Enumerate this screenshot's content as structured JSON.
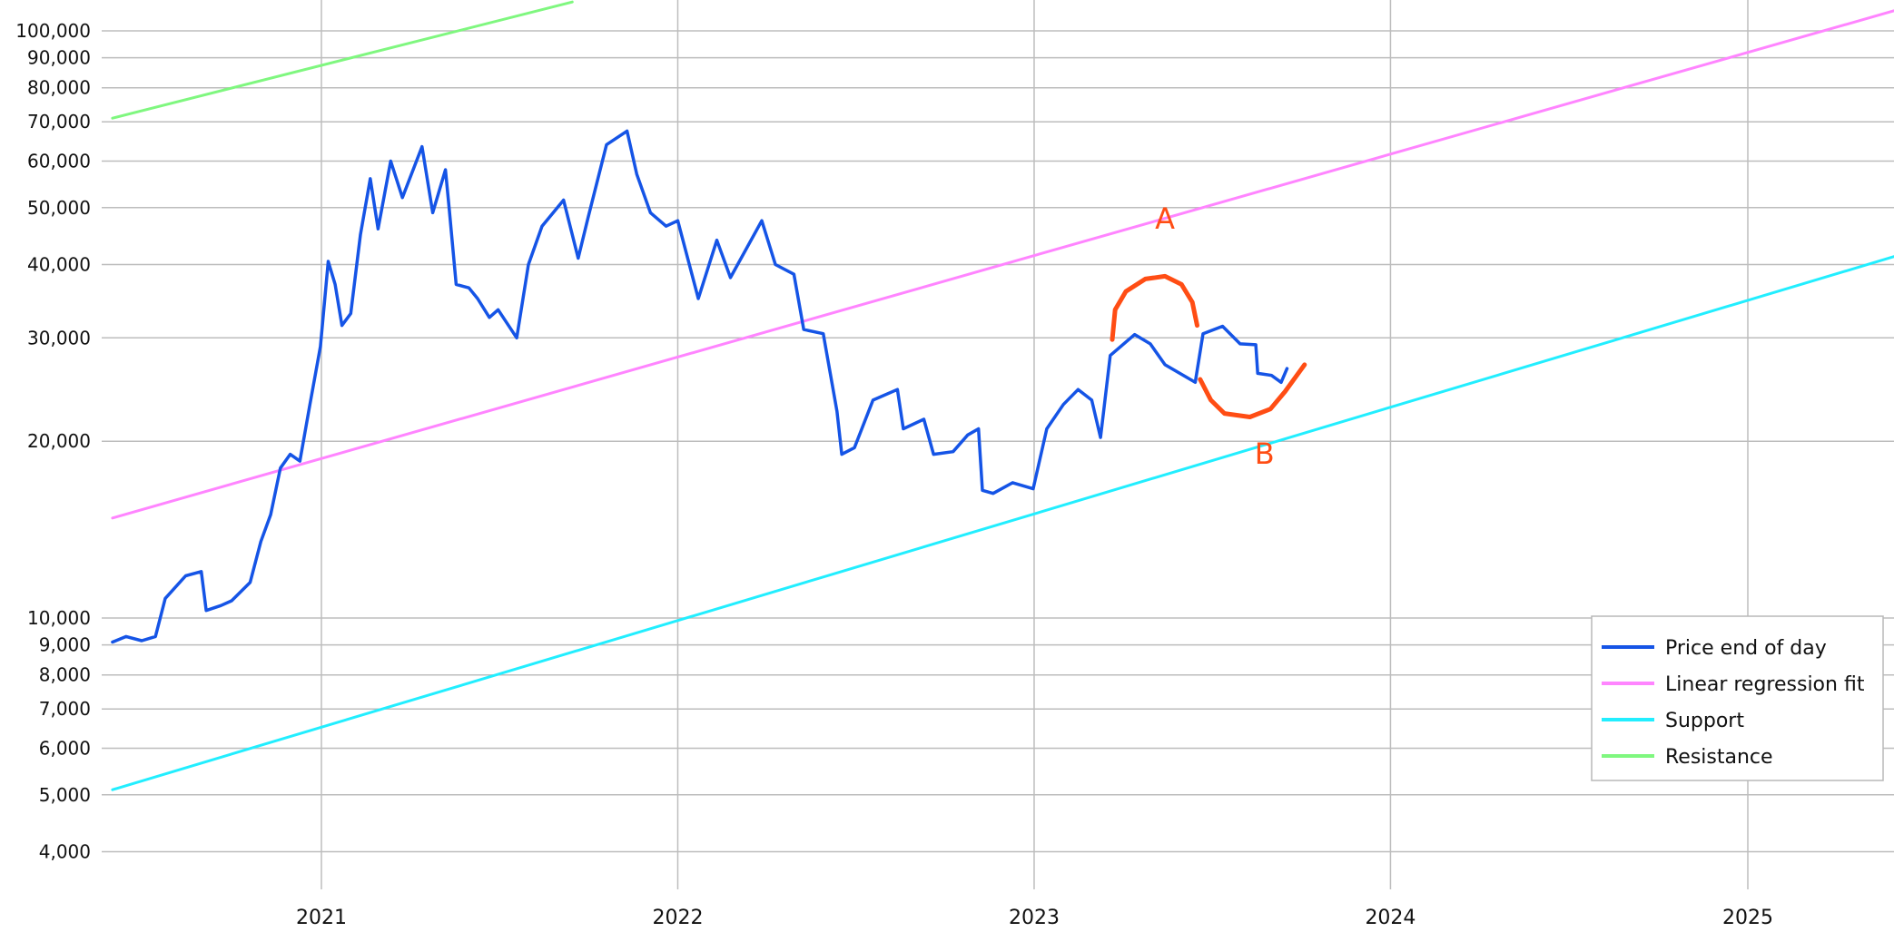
{
  "chart_data": {
    "type": "line",
    "title": "",
    "xlabel": "",
    "ylabel": "",
    "y_scale": "log",
    "xlim": [
      "2020-06-01",
      "2025-06-15"
    ],
    "ylim": [
      3500,
      100000
    ],
    "grid": true,
    "legend_position": "bottom-right",
    "x_ticks": [
      "2021",
      "2022",
      "2023",
      "2024",
      "2025"
    ],
    "y_ticks": [
      {
        "value": 4000,
        "label": "4,000"
      },
      {
        "value": 5000,
        "label": "5,000"
      },
      {
        "value": 6000,
        "label": "6,000"
      },
      {
        "value": 7000,
        "label": "7,000"
      },
      {
        "value": 8000,
        "label": "8,000"
      },
      {
        "value": 9000,
        "label": "9,000"
      },
      {
        "value": 10000,
        "label": "10,000"
      },
      {
        "value": 20000,
        "label": "20,000"
      },
      {
        "value": 30000,
        "label": "30,000"
      },
      {
        "value": 40000,
        "label": "40,000"
      },
      {
        "value": 50000,
        "label": "50,000"
      },
      {
        "value": 60000,
        "label": "60,000"
      },
      {
        "value": 70000,
        "label": "70,000"
      },
      {
        "value": 80000,
        "label": "80,000"
      },
      {
        "value": 90000,
        "label": "90,000"
      },
      {
        "value": 100000,
        "label": "100,000"
      }
    ],
    "series": [
      {
        "name": "Price end of day",
        "color": "#1554e6",
        "points": [
          [
            "2020-06-01",
            9100
          ],
          [
            "2020-06-15",
            9300
          ],
          [
            "2020-07-01",
            9150
          ],
          [
            "2020-07-15",
            9300
          ],
          [
            "2020-07-25",
            10800
          ],
          [
            "2020-08-15",
            11800
          ],
          [
            "2020-08-31",
            12000
          ],
          [
            "2020-09-05",
            10300
          ],
          [
            "2020-09-20",
            10500
          ],
          [
            "2020-10-01",
            10700
          ],
          [
            "2020-10-20",
            11500
          ],
          [
            "2020-10-31",
            13500
          ],
          [
            "2020-11-10",
            15000
          ],
          [
            "2020-11-20",
            18000
          ],
          [
            "2020-11-30",
            19000
          ],
          [
            "2020-12-10",
            18500
          ],
          [
            "2020-12-20",
            23000
          ],
          [
            "2020-12-31",
            29000
          ],
          [
            "2021-01-08",
            40500
          ],
          [
            "2021-01-15",
            37000
          ],
          [
            "2021-01-22",
            31500
          ],
          [
            "2021-01-31",
            33000
          ],
          [
            "2021-02-10",
            45000
          ],
          [
            "2021-02-20",
            56000
          ],
          [
            "2021-02-28",
            46000
          ],
          [
            "2021-03-13",
            60000
          ],
          [
            "2021-03-25",
            52000
          ],
          [
            "2021-04-14",
            63500
          ],
          [
            "2021-04-25",
            49000
          ],
          [
            "2021-05-08",
            58000
          ],
          [
            "2021-05-12",
            49500
          ],
          [
            "2021-05-19",
            37000
          ],
          [
            "2021-06-01",
            36500
          ],
          [
            "2021-06-10",
            35000
          ],
          [
            "2021-06-22",
            32500
          ],
          [
            "2021-07-01",
            33500
          ],
          [
            "2021-07-20",
            30000
          ],
          [
            "2021-08-01",
            40000
          ],
          [
            "2021-08-15",
            46500
          ],
          [
            "2021-09-06",
            51500
          ],
          [
            "2021-09-21",
            41000
          ],
          [
            "2021-10-01",
            48000
          ],
          [
            "2021-10-20",
            64000
          ],
          [
            "2021-11-10",
            67500
          ],
          [
            "2021-11-20",
            57000
          ],
          [
            "2021-12-04",
            49000
          ],
          [
            "2021-12-20",
            46500
          ],
          [
            "2022-01-01",
            47500
          ],
          [
            "2022-01-22",
            35000
          ],
          [
            "2022-02-10",
            44000
          ],
          [
            "2022-02-24",
            38000
          ],
          [
            "2022-03-28",
            47500
          ],
          [
            "2022-04-11",
            40000
          ],
          [
            "2022-04-30",
            38500
          ],
          [
            "2022-05-10",
            31000
          ],
          [
            "2022-05-30",
            30500
          ],
          [
            "2022-06-13",
            22500
          ],
          [
            "2022-06-18",
            19000
          ],
          [
            "2022-07-01",
            19500
          ],
          [
            "2022-07-20",
            23500
          ],
          [
            "2022-08-14",
            24500
          ],
          [
            "2022-08-20",
            21000
          ],
          [
            "2022-09-10",
            21800
          ],
          [
            "2022-09-20",
            19000
          ],
          [
            "2022-10-10",
            19200
          ],
          [
            "2022-10-25",
            20500
          ],
          [
            "2022-11-05",
            21000
          ],
          [
            "2022-11-09",
            16500
          ],
          [
            "2022-11-20",
            16300
          ],
          [
            "2022-12-10",
            17000
          ],
          [
            "2022-12-31",
            16600
          ],
          [
            "2023-01-14",
            21000
          ],
          [
            "2023-01-31",
            23100
          ],
          [
            "2023-02-15",
            24500
          ],
          [
            "2023-03-01",
            23500
          ],
          [
            "2023-03-10",
            20300
          ],
          [
            "2023-03-20",
            28000
          ],
          [
            "2023-04-14",
            30400
          ],
          [
            "2023-04-30",
            29300
          ],
          [
            "2023-05-15",
            27000
          ],
          [
            "2023-06-15",
            25200
          ],
          [
            "2023-06-23",
            30500
          ],
          [
            "2023-07-13",
            31400
          ],
          [
            "2023-07-31",
            29300
          ],
          [
            "2023-08-16",
            29200
          ],
          [
            "2023-08-18",
            26100
          ],
          [
            "2023-09-01",
            25900
          ],
          [
            "2023-09-11",
            25200
          ],
          [
            "2023-09-17",
            26600
          ]
        ]
      },
      {
        "name": "Linear regression fit",
        "color": "#ff85ff",
        "points": [
          [
            "2020-06-01",
            14800
          ],
          [
            "2025-06-15",
            110000
          ]
        ]
      },
      {
        "name": "Support",
        "color": "#22eeff",
        "points": [
          [
            "2020-06-01",
            5100
          ],
          [
            "2025-06-15",
            42000
          ]
        ]
      },
      {
        "name": "Resistance",
        "color": "#7ff77f",
        "points": [
          [
            "2020-06-01",
            71000
          ],
          [
            "2021-09-15",
            112000
          ]
        ]
      }
    ],
    "annotations": [
      {
        "label": "A",
        "color": "#ff4d14",
        "label_at": [
          "2023-05-15",
          46000
        ],
        "curve": [
          [
            "2023-03-22",
            29800
          ],
          [
            "2023-03-25",
            33500
          ],
          [
            "2023-04-05",
            36000
          ],
          [
            "2023-04-25",
            37800
          ],
          [
            "2023-05-15",
            38200
          ],
          [
            "2023-06-01",
            37000
          ],
          [
            "2023-06-12",
            34500
          ],
          [
            "2023-06-17",
            31500
          ]
        ]
      },
      {
        "label": "B",
        "color": "#ff4d14",
        "label_at": [
          "2023-08-25",
          18300
        ],
        "curve": [
          [
            "2023-06-20",
            25500
          ],
          [
            "2023-07-01",
            23500
          ],
          [
            "2023-07-15",
            22300
          ],
          [
            "2023-08-10",
            22000
          ],
          [
            "2023-08-31",
            22700
          ],
          [
            "2023-09-15",
            24300
          ],
          [
            "2023-09-30",
            26300
          ],
          [
            "2023-10-05",
            27000
          ]
        ]
      }
    ]
  }
}
